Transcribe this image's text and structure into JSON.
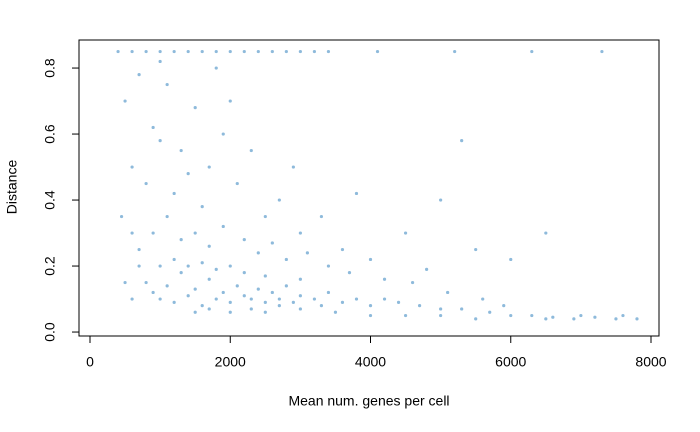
{
  "chart_data": {
    "type": "scatter",
    "x_label": "Mean num. genes per cell",
    "y_label": "Distance",
    "color": "#3182bd",
    "xlim": [
      -157,
      8114
    ],
    "ylim": [
      -0.012,
      0.885
    ],
    "xticks": [
      0,
      2000,
      4000,
      6000,
      8000
    ],
    "yticks": [
      {
        "value": 0,
        "label": "0.0"
      },
      0.2,
      0.4,
      0.6,
      0.8
    ],
    "x": [
      400,
      600,
      800,
      1000,
      1200,
      1400,
      1600,
      1800,
      2000,
      2200,
      2400,
      2600,
      2800,
      3000,
      3200,
      3400,
      4100,
      5200,
      6300,
      7300,
      500,
      700,
      900,
      1100,
      1300,
      1500,
      1700,
      1900,
      600,
      800,
      1000,
      1200,
      1400,
      1600,
      2100,
      2300,
      2500,
      2700,
      3000,
      3300,
      3600,
      4000,
      4500,
      5000,
      5300,
      5500,
      6000,
      6500,
      4800,
      3800,
      2900,
      2000,
      1800,
      1000,
      600,
      450,
      700,
      900,
      1100,
      1300,
      1500,
      1700,
      1900,
      2200,
      2400,
      2600,
      2800,
      3100,
      3400,
      3700,
      4200,
      4600,
      5100,
      5600,
      5900,
      800,
      900,
      1000,
      1100,
      1200,
      1300,
      1400,
      1500,
      1600,
      1700,
      1800,
      1900,
      2000,
      2100,
      2200,
      2300,
      2400,
      2500,
      2600,
      2700,
      2800,
      2900,
      3000,
      3200,
      3400,
      3600,
      3800,
      4000,
      4200,
      4400,
      4700,
      5000,
      5300,
      5700,
      6000,
      6300,
      6600,
      6900,
      7200,
      7500,
      7800,
      1000,
      1200,
      1400,
      1600,
      1800,
      2000,
      2200,
      2500,
      3000,
      1500,
      2000,
      2500,
      3000,
      3500,
      4000,
      4500,
      5000,
      5500,
      6500,
      7000,
      7600,
      600,
      500,
      700,
      1700,
      2300,
      2700,
      3300
    ],
    "y": [
      0.85,
      0.85,
      0.85,
      0.85,
      0.85,
      0.85,
      0.85,
      0.85,
      0.85,
      0.85,
      0.85,
      0.85,
      0.85,
      0.85,
      0.85,
      0.85,
      0.85,
      0.85,
      0.85,
      0.85,
      0.7,
      0.78,
      0.62,
      0.75,
      0.55,
      0.68,
      0.5,
      0.6,
      0.5,
      0.45,
      0.58,
      0.42,
      0.48,
      0.38,
      0.45,
      0.55,
      0.35,
      0.4,
      0.3,
      0.35,
      0.25,
      0.22,
      0.3,
      0.4,
      0.58,
      0.25,
      0.22,
      0.3,
      0.19,
      0.42,
      0.5,
      0.7,
      0.8,
      0.82,
      0.3,
      0.35,
      0.25,
      0.3,
      0.35,
      0.28,
      0.3,
      0.26,
      0.32,
      0.28,
      0.24,
      0.27,
      0.22,
      0.24,
      0.2,
      0.18,
      0.16,
      0.15,
      0.12,
      0.1,
      0.08,
      0.15,
      0.12,
      0.1,
      0.14,
      0.09,
      0.18,
      0.11,
      0.13,
      0.08,
      0.16,
      0.1,
      0.12,
      0.09,
      0.14,
      0.11,
      0.1,
      0.13,
      0.09,
      0.12,
      0.1,
      0.14,
      0.09,
      0.11,
      0.1,
      0.12,
      0.09,
      0.1,
      0.08,
      0.1,
      0.09,
      0.08,
      0.07,
      0.07,
      0.06,
      0.05,
      0.05,
      0.045,
      0.04,
      0.045,
      0.04,
      0.04,
      0.2,
      0.22,
      0.2,
      0.21,
      0.19,
      0.2,
      0.18,
      0.17,
      0.16,
      0.06,
      0.06,
      0.06,
      0.07,
      0.06,
      0.05,
      0.05,
      0.05,
      0.04,
      0.04,
      0.05,
      0.05,
      0.1,
      0.15,
      0.2,
      0.07,
      0.07,
      0.08,
      0.08
    ]
  }
}
